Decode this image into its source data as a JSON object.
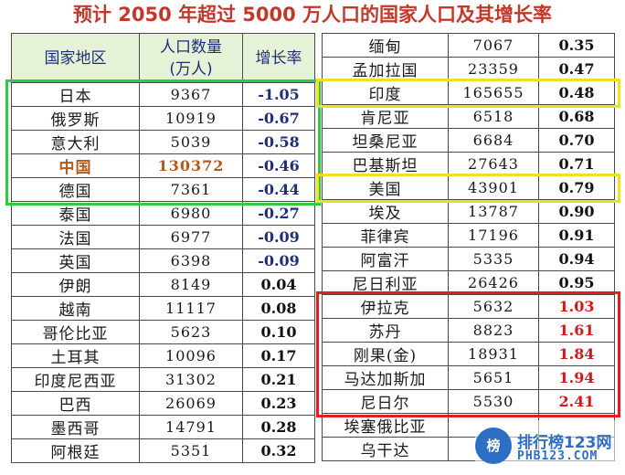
{
  "title": "预计 2050 年超过 5000 万人口的国家人口及其增长率",
  "left_table": {
    "headers": {
      "country": "国家地区",
      "population": "人口数量\n(万人)",
      "growth": "增长率"
    },
    "rows": [
      {
        "country": "日本",
        "population": "9367",
        "growth": "-1.05"
      },
      {
        "country": "俄罗斯",
        "population": "10919",
        "growth": "-0.67"
      },
      {
        "country": "意大利",
        "population": "5039",
        "growth": "-0.58"
      },
      {
        "country": "中国",
        "population": "130372",
        "growth": "-0.46"
      },
      {
        "country": "德国",
        "population": "7361",
        "growth": "-0.44"
      },
      {
        "country": "泰国",
        "population": "6980",
        "growth": "-0.27"
      },
      {
        "country": "法国",
        "population": "6977",
        "growth": "-0.09"
      },
      {
        "country": "英国",
        "population": "6398",
        "growth": "-0.09"
      },
      {
        "country": "伊朗",
        "population": "8149",
        "growth": "0.04"
      },
      {
        "country": "越南",
        "population": "11117",
        "growth": "0.08"
      },
      {
        "country": "哥伦比亚",
        "population": "5623",
        "growth": "0.10"
      },
      {
        "country": "土耳其",
        "population": "10096",
        "growth": "0.17"
      },
      {
        "country": "印度尼西亚",
        "population": "31302",
        "growth": "0.21"
      },
      {
        "country": "巴西",
        "population": "26069",
        "growth": "0.23"
      },
      {
        "country": "墨西哥",
        "population": "14791",
        "growth": "0.28"
      },
      {
        "country": "阿根廷",
        "population": "5351",
        "growth": "0.32"
      }
    ]
  },
  "right_table": {
    "rows": [
      {
        "country": "缅甸",
        "population": "7067",
        "growth": "0.35"
      },
      {
        "country": "孟加拉国",
        "population": "23359",
        "growth": "0.47"
      },
      {
        "country": "印度",
        "population": "165655",
        "growth": "0.48"
      },
      {
        "country": "肯尼亚",
        "population": "6518",
        "growth": "0.68"
      },
      {
        "country": "坦桑尼亚",
        "population": "6684",
        "growth": "0.70"
      },
      {
        "country": "巴基斯坦",
        "population": "27643",
        "growth": "0.71"
      },
      {
        "country": "美国",
        "population": "43901",
        "growth": "0.79"
      },
      {
        "country": "埃及",
        "population": "13787",
        "growth": "0.90"
      },
      {
        "country": "菲律宾",
        "population": "17196",
        "growth": "0.91"
      },
      {
        "country": "阿富汗",
        "population": "5335",
        "growth": "0.94"
      },
      {
        "country": "尼日利亚",
        "population": "26426",
        "growth": "0.95"
      },
      {
        "country": "伊拉克",
        "population": "5632",
        "growth": "1.03"
      },
      {
        "country": "苏丹",
        "population": "8823",
        "growth": "1.61"
      },
      {
        "country": "刚果(金)",
        "population": "18931",
        "growth": "1.84"
      },
      {
        "country": "马达加斯加",
        "population": "5651",
        "growth": "1.94"
      },
      {
        "country": "尼日尔",
        "population": "5530",
        "growth": "2.41"
      },
      {
        "country": "埃塞俄比亚",
        "population": "",
        "growth": ""
      },
      {
        "country": "乌干达",
        "population": "",
        "growth": ""
      }
    ]
  },
  "watermark": {
    "logo": "榜",
    "text": "排行榜123网",
    "sub": "PHB123.COM"
  },
  "colors": {
    "title": "#c0392b",
    "header_bg": "#e6f2d8",
    "negative_rate": "#1f2e7a",
    "high_rate": "#d21818",
    "china": "#b05a1e",
    "green_box": "#2ecc40",
    "yellow_box": "#f0e020",
    "red_box": "#e02020"
  }
}
